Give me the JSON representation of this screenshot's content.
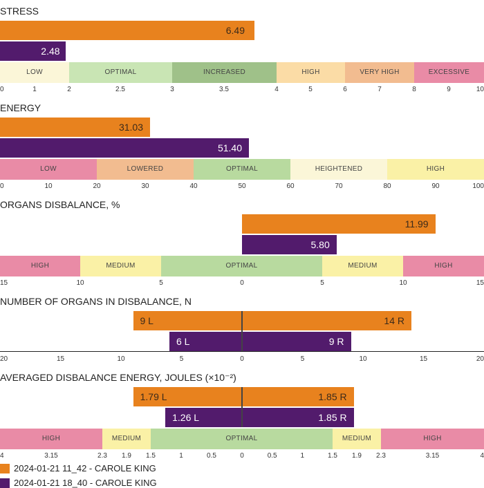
{
  "colors": {
    "session1": "#E8821E",
    "session2": "#521B6C",
    "label_dark": "#3b2a1a",
    "label_light": "#ffffff"
  },
  "legend": [
    {
      "label": "2024-01-21 11_42 - CAROLE KING",
      "color": "#E8821E"
    },
    {
      "label": "2024-01-21 18_40 - CAROLE KING",
      "color": "#521B6C"
    }
  ],
  "chart_data": [
    {
      "type": "bar",
      "title": "STRESS",
      "orientation": "horizontal",
      "xlim": [
        0,
        10
      ],
      "ticks": [
        "0",
        "1",
        "2",
        "2.5",
        "3",
        "3.5",
        "4",
        "5",
        "6",
        "7",
        "8",
        "9",
        "10"
      ],
      "series": [
        {
          "name": "2024-01-21 11_42 - CAROLE KING",
          "value": 6.49,
          "label": "6.49"
        },
        {
          "name": "2024-01-21 18_40 - CAROLE KING",
          "value": 2.48,
          "label": "2.48"
        }
      ],
      "zones": [
        {
          "label": "LOW",
          "from": 0,
          "to": 2,
          "color": "#FBF6D8"
        },
        {
          "label": "OPTIMAL",
          "from": 2,
          "to": 3,
          "color": "#C9E5B4"
        },
        {
          "label": "INCREASED",
          "from": 3,
          "to": 4,
          "color": "#9FC189"
        },
        {
          "label": "HIGH",
          "from": 4,
          "to": 6,
          "color": "#FBDCA6"
        },
        {
          "label": "VERY HIGH",
          "from": 6,
          "to": 8,
          "color": "#F2BC90"
        },
        {
          "label": "EXCESSIVE",
          "from": 8,
          "to": 10,
          "color": "#E98BA6"
        }
      ]
    },
    {
      "type": "bar",
      "title": "ENERGY",
      "orientation": "horizontal",
      "xlim": [
        0,
        100
      ],
      "ticks": [
        "0",
        "10",
        "20",
        "30",
        "40",
        "50",
        "60",
        "70",
        "80",
        "90",
        "100"
      ],
      "series": [
        {
          "name": "2024-01-21 11_42 - CAROLE KING",
          "value": 31.03,
          "label": "31.03"
        },
        {
          "name": "2024-01-21 18_40 - CAROLE KING",
          "value": 51.4,
          "label": "51.40"
        }
      ],
      "zones": [
        {
          "label": "LOW",
          "from": 0,
          "to": 20,
          "color": "#E98BA6"
        },
        {
          "label": "LOWERED",
          "from": 20,
          "to": 40,
          "color": "#F2BC90"
        },
        {
          "label": "OPTIMAL",
          "from": 40,
          "to": 60,
          "color": "#B8DA9F"
        },
        {
          "label": "HEIGHTENED",
          "from": 60,
          "to": 80,
          "color": "#FBF6D8"
        },
        {
          "label": "HIGH",
          "from": 80,
          "to": 100,
          "color": "#FAF1A6"
        }
      ]
    },
    {
      "type": "bar",
      "title": "ORGANS DISBALANCE, %",
      "orientation": "horizontal",
      "xlim": [
        -15,
        15
      ],
      "ticks": [
        "15",
        "10",
        "5",
        "0",
        "5",
        "10",
        "15"
      ],
      "series": [
        {
          "name": "2024-01-21 11_42 - CAROLE KING",
          "value": 11.99,
          "label": "11.99"
        },
        {
          "name": "2024-01-21 18_40 - CAROLE KING",
          "value": 5.8,
          "label": "5.80"
        }
      ],
      "zones": [
        {
          "label": "HIGH",
          "from": -15,
          "to": -10,
          "color": "#E98BA6"
        },
        {
          "label": "MEDIUM",
          "from": -10,
          "to": -5,
          "color": "#FAF1A6"
        },
        {
          "label": "OPTIMAL",
          "from": -5,
          "to": 5,
          "color": "#B8DA9F"
        },
        {
          "label": "MEDIUM",
          "from": 5,
          "to": 10,
          "color": "#FAF1A6"
        },
        {
          "label": "HIGH",
          "from": 10,
          "to": 15,
          "color": "#E98BA6"
        }
      ]
    },
    {
      "type": "bar",
      "title": "NUMBER OF ORGANS IN DISBALANCE, N",
      "orientation": "horizontal-diverging",
      "xlim": [
        -20,
        20
      ],
      "ticks": [
        "20",
        "15",
        "10",
        "5",
        "0",
        "5",
        "10",
        "15",
        "20"
      ],
      "series": [
        {
          "name": "2024-01-21 11_42 - CAROLE KING",
          "left": 9,
          "right": 14,
          "left_label": "9 L",
          "right_label": "14 R"
        },
        {
          "name": "2024-01-21 18_40 - CAROLE KING",
          "left": 6,
          "right": 9,
          "left_label": "6 L",
          "right_label": "9 R"
        }
      ]
    },
    {
      "type": "bar",
      "title": "AVERAGED DISBALANCE ENERGY, JOULES (×10⁻²)",
      "orientation": "horizontal-diverging",
      "xlim": [
        -4,
        4
      ],
      "ticks": [
        {
          "label": "4",
          "value": -4
        },
        {
          "label": "3.15",
          "value": -3.15
        },
        {
          "label": "2.3",
          "value": -2.3
        },
        {
          "label": "1.9",
          "value": -1.9
        },
        {
          "label": "1.5",
          "value": -1.5
        },
        {
          "label": "1",
          "value": -1
        },
        {
          "label": "0.5",
          "value": -0.5
        },
        {
          "label": "0",
          "value": 0
        },
        {
          "label": "0.5",
          "value": 0.5
        },
        {
          "label": "1",
          "value": 1
        },
        {
          "label": "1.5",
          "value": 1.5
        },
        {
          "label": "1.9",
          "value": 1.9
        },
        {
          "label": "2.3",
          "value": 2.3
        },
        {
          "label": "3.15",
          "value": 3.15
        },
        {
          "label": "4",
          "value": 4
        }
      ],
      "series": [
        {
          "name": "2024-01-21 11_42 - CAROLE KING",
          "left": 1.79,
          "right": 1.85,
          "left_label": "1.79 L",
          "right_label": "1.85 R"
        },
        {
          "name": "2024-01-21 18_40 - CAROLE KING",
          "left": 1.26,
          "right": 1.85,
          "left_label": "1.26 L",
          "right_label": "1.85 R"
        }
      ],
      "zones": [
        {
          "label": "HIGH",
          "from": -4,
          "to": -2.3,
          "color": "#E98BA6"
        },
        {
          "label": "MEDIUM",
          "from": -2.3,
          "to": -1.5,
          "color": "#FAF1A6"
        },
        {
          "label": "OPTIMAL",
          "from": -1.5,
          "to": 1.5,
          "color": "#B8DA9F"
        },
        {
          "label": "MEDIUM",
          "from": 1.5,
          "to": 2.3,
          "color": "#FAF1A6"
        },
        {
          "label": "HIGH",
          "from": 2.3,
          "to": 4,
          "color": "#E98BA6"
        }
      ]
    }
  ]
}
